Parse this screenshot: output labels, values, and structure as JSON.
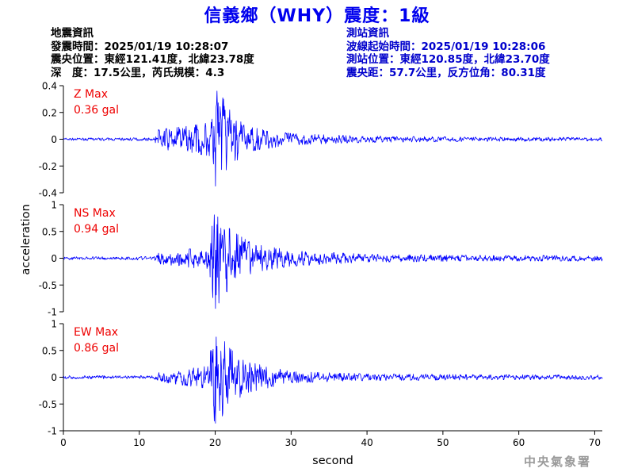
{
  "title": "信義鄉（WHY）震度：1級",
  "quake_info": {
    "heading": "地震資訊",
    "origin_time": "發震時間：2025/01/19 10:28:07",
    "epicenter": "震央位置：東經121.41度，北緯23.78度",
    "depth_magnitude": "深　度：17.5公里，芮氏規模：4.3"
  },
  "station_info": {
    "heading": "測站資訊",
    "wave_start": "波線起始時間：2025/01/19 10:28:06",
    "station_location": "測站位置：東經120.85度，北緯23.70度",
    "distance": "震央距：57.7公里，反方位角：80.31度"
  },
  "footer": "中央氣象署",
  "chart_data": {
    "type": "line",
    "xlabel": "second",
    "ylabel": "acceleration",
    "xlim": [
      0,
      71
    ],
    "xticks": [
      "0",
      "10",
      "20",
      "30",
      "40",
      "50",
      "60",
      "70"
    ],
    "line_color": "#0000ff",
    "label_color": "#ee0000",
    "grid": false,
    "series": [
      {
        "name": "Z Max",
        "max_label": "0.36 gal",
        "ylim": [
          -0.4,
          0.4
        ],
        "yticks": [
          "0.4",
          "0.2",
          "0",
          "-0.2",
          "-0.4"
        ],
        "peak_positive": 0.36,
        "peak_negative": -0.35,
        "noise_level": 0.008,
        "envelope_points": [
          [
            0,
            0.008
          ],
          [
            12,
            0.01
          ],
          [
            12.5,
            0.07
          ],
          [
            16,
            0.09
          ],
          [
            19.5,
            0.12
          ],
          [
            20.3,
            0.36
          ],
          [
            22,
            0.2
          ],
          [
            24,
            0.09
          ],
          [
            30,
            0.04
          ],
          [
            40,
            0.022
          ],
          [
            55,
            0.015
          ],
          [
            71,
            0.012
          ]
        ]
      },
      {
        "name": "NS Max",
        "max_label": "0.94 gal",
        "ylim": [
          -1,
          1
        ],
        "yticks": [
          "1",
          "0.5",
          "0",
          "-0.5",
          "-1"
        ],
        "peak_positive": 0.63,
        "peak_negative": -0.94,
        "noise_level": 0.025,
        "envelope_points": [
          [
            0,
            0.025
          ],
          [
            12,
            0.03
          ],
          [
            12.5,
            0.1
          ],
          [
            19,
            0.2
          ],
          [
            20,
            0.94
          ],
          [
            22,
            0.5
          ],
          [
            25,
            0.25
          ],
          [
            30,
            0.14
          ],
          [
            40,
            0.07
          ],
          [
            55,
            0.05
          ],
          [
            71,
            0.05
          ]
        ]
      },
      {
        "name": "EW Max",
        "max_label": "0.86 gal",
        "ylim": [
          -1,
          1
        ],
        "yticks": [
          "1",
          "0.5",
          "0",
          "-0.5",
          "-1"
        ],
        "peak_positive": 0.58,
        "peak_negative": -0.86,
        "noise_level": 0.025,
        "envelope_points": [
          [
            0,
            0.025
          ],
          [
            12,
            0.03
          ],
          [
            12.5,
            0.08
          ],
          [
            19,
            0.2
          ],
          [
            20,
            0.86
          ],
          [
            22,
            0.5
          ],
          [
            24,
            0.28
          ],
          [
            30,
            0.1
          ],
          [
            40,
            0.06
          ],
          [
            55,
            0.045
          ],
          [
            71,
            0.04
          ]
        ]
      }
    ]
  }
}
